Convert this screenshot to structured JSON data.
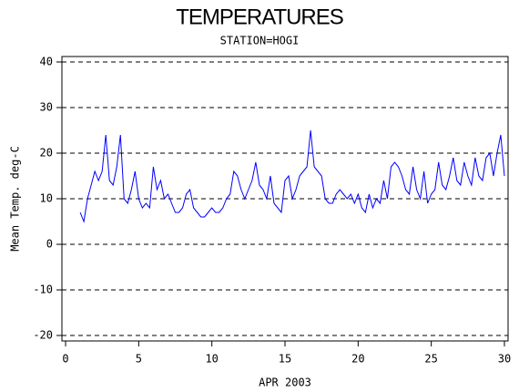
{
  "chart_data": {
    "type": "line",
    "title": "TEMPERATURES",
    "subtitle": "STATION=HOGI",
    "x_label": "APR 2003",
    "y_label": "Mean Temp. deg-C",
    "xlim": [
      -0.25,
      30.25
    ],
    "xticks": [
      0,
      5,
      10,
      15,
      20,
      25,
      30
    ],
    "ylim": [
      -21.2,
      41.2
    ],
    "yticks": [
      -20,
      -10,
      0,
      10,
      20,
      30,
      40
    ],
    "grid": true,
    "series": [
      {
        "color": "#0000ff",
        "x": [
          1,
          1.25,
          1.5,
          1.75,
          2,
          2.25,
          2.5,
          2.75,
          3,
          3.25,
          3.5,
          3.75,
          4,
          4.25,
          4.5,
          4.75,
          5,
          5.25,
          5.5,
          5.75,
          6,
          6.25,
          6.5,
          6.75,
          7,
          7.25,
          7.5,
          7.75,
          8,
          8.25,
          8.5,
          8.75,
          9,
          9.25,
          9.5,
          9.75,
          10,
          10.25,
          10.5,
          10.75,
          11,
          11.25,
          11.5,
          11.75,
          12,
          12.25,
          12.5,
          12.75,
          13,
          13.25,
          13.5,
          13.75,
          14,
          14.25,
          14.5,
          14.75,
          15,
          15.25,
          15.5,
          15.75,
          16,
          16.25,
          16.5,
          16.75,
          17,
          17.25,
          17.5,
          17.75,
          18,
          18.25,
          18.5,
          18.75,
          19,
          19.25,
          19.5,
          19.75,
          20,
          20.25,
          20.5,
          20.75,
          21,
          21.25,
          21.5,
          21.75,
          22,
          22.25,
          22.5,
          22.75,
          23,
          23.25,
          23.5,
          23.75,
          24,
          24.25,
          24.5,
          24.75,
          25,
          25.25,
          25.5,
          25.75,
          26,
          26.25,
          26.5,
          26.75,
          27,
          27.25,
          27.5,
          27.75,
          28,
          28.25,
          28.5,
          28.75,
          29,
          29.25,
          29.5,
          29.75,
          30
        ],
        "values": [
          7,
          5,
          10,
          13,
          16,
          14,
          16,
          24,
          14,
          13,
          17,
          24,
          10,
          9,
          12,
          16,
          10,
          8,
          9,
          8,
          17,
          12,
          14,
          10,
          11,
          9,
          7,
          7,
          8,
          11,
          12,
          8,
          7,
          6,
          6,
          7,
          8,
          7,
          7,
          8,
          10,
          11,
          16,
          15,
          12,
          10,
          12,
          14,
          18,
          13,
          12,
          10,
          15,
          9,
          8,
          7,
          14,
          15,
          10,
          12,
          15,
          16,
          17,
          25,
          17,
          16,
          15,
          10,
          9,
          9,
          11,
          12,
          11,
          10,
          11,
          9,
          11,
          8,
          7,
          11,
          8,
          10,
          9,
          14,
          10,
          17,
          18,
          17,
          15,
          12,
          11,
          17,
          12,
          10,
          16,
          9,
          11,
          12,
          18,
          13,
          12,
          15,
          19,
          14,
          13,
          18,
          15,
          13,
          19,
          15,
          14,
          19,
          20,
          15,
          20,
          24,
          15
        ]
      }
    ]
  }
}
